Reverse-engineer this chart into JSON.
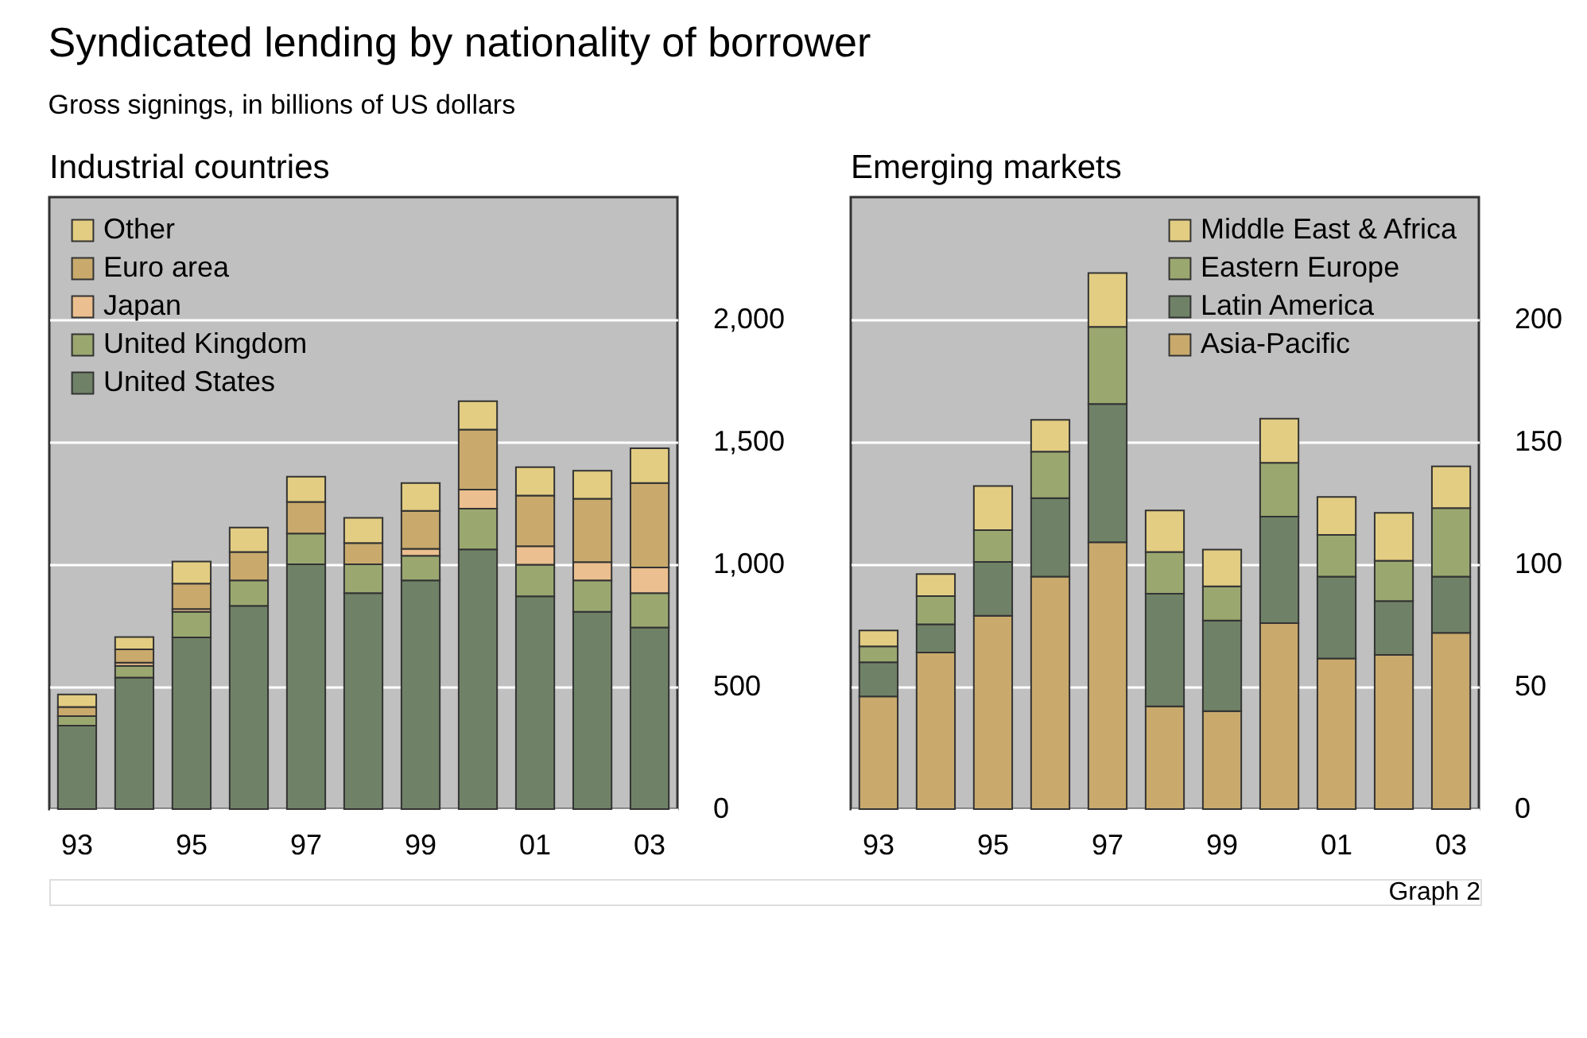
{
  "chart_data": [
    {
      "type": "other",
      "title": "Syndicated lending by nationality of borrower",
      "subtitle": "Gross signings, in billions of US dollars",
      "annotations": [
        "Graph 2"
      ]
    },
    {
      "type": "bar",
      "title": "Industrial countries",
      "stacked": true,
      "categories": [
        "93",
        null,
        "95",
        null,
        "97",
        null,
        "99",
        null,
        "01",
        null,
        "03"
      ],
      "ylim": [
        0,
        2500
      ],
      "yticks": [
        0,
        {
          "value": 500,
          "label": "500"
        },
        {
          "value": 1000,
          "label": "1,000"
        },
        {
          "value": 1500,
          "label": "1,500"
        },
        {
          "value": 2000,
          "label": "2,000"
        }
      ],
      "grid": "y",
      "legend": "top left",
      "series": [
        {
          "name": "United States",
          "color": "#6f8267",
          "values": [
            341,
            537,
            701,
            830,
            1000,
            882,
            934,
            1061,
            869,
            806,
            742
          ]
        },
        {
          "name": "United Kingdom",
          "color": "#9aa870",
          "values": [
            39,
            48,
            105,
            104,
            126,
            118,
            101,
            166,
            129,
            128,
            140
          ]
        },
        {
          "name": "Japan",
          "color": "#ebbf8f",
          "values": [
            null,
            13,
            11,
            0,
            0,
            0,
            28,
            78,
            76,
            75,
            105
          ]
        },
        {
          "name": "Euro area",
          "color": "#c9aa6c",
          "values": [
            37,
            55,
            104,
            116,
            129,
            87,
            155,
            245,
            207,
            259,
            345
          ]
        },
        {
          "name": "Other",
          "color": "#e3cd82",
          "values": [
            51,
            50,
            90,
            100,
            103,
            103,
            114,
            116,
            116,
            114,
            142
          ]
        }
      ]
    },
    {
      "type": "bar",
      "title": "Emerging markets",
      "stacked": true,
      "categories": [
        "93",
        null,
        "95",
        null,
        "97",
        null,
        "99",
        null,
        "01",
        null,
        "03"
      ],
      "ylim": [
        0,
        250
      ],
      "yticks": [
        0,
        50,
        100,
        150,
        200
      ],
      "grid": "y",
      "legend": "top right",
      "series": [
        {
          "name": "Asia-Pacific",
          "color": "#c9aa6c",
          "values": [
            46,
            64,
            79,
            95,
            109,
            42,
            40,
            76,
            61.5,
            63,
            72
          ]
        },
        {
          "name": "Latin America",
          "color": "#6f8267",
          "values": [
            14,
            11.5,
            22,
            32,
            56.5,
            46,
            37,
            43.5,
            33.5,
            22,
            23
          ]
        },
        {
          "name": "Eastern Europe",
          "color": "#9aa870",
          "values": [
            6.5,
            11.5,
            13,
            19,
            31.5,
            17,
            14,
            22,
            17,
            16.5,
            28
          ]
        },
        {
          "name": "Middle East & Africa",
          "color": "#e3cd82",
          "values": [
            6.5,
            9,
            18,
            13,
            22,
            17,
            15,
            18,
            15.5,
            19.5,
            17
          ]
        }
      ]
    }
  ]
}
